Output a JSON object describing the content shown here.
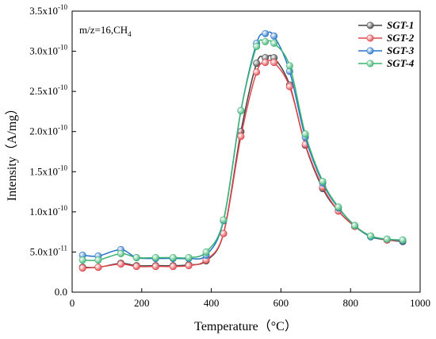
{
  "chart_data": {
    "type": "line",
    "title": "",
    "annotation": {
      "text": "m/z=16,CH",
      "sub": "4"
    },
    "xlabel": "Temperature（°C）",
    "ylabel": "Intensity（A/mg）",
    "xlim": [
      0,
      1000
    ],
    "ylim": [
      0,
      3.5e-10
    ],
    "x_ticks": [
      0,
      200,
      400,
      600,
      800,
      1000
    ],
    "y_ticks": [
      {
        "value": 0,
        "label": "0.0"
      },
      {
        "value": 5e-11,
        "label": "5.0x10",
        "exp": "-11"
      },
      {
        "value": 1e-10,
        "label": "1.0x10",
        "exp": "-10"
      },
      {
        "value": 1.5e-10,
        "label": "1.5x10",
        "exp": "-10"
      },
      {
        "value": 2e-10,
        "label": "2.0x10",
        "exp": "-10"
      },
      {
        "value": 2.5e-10,
        "label": "2.5x10",
        "exp": "-10"
      },
      {
        "value": 3e-10,
        "label": "3.0x10",
        "exp": "-10"
      },
      {
        "value": 3.5e-10,
        "label": "3.5x10",
        "exp": "-10"
      }
    ],
    "legend_position": "top-right",
    "series": [
      {
        "name": "SGT-1",
        "color": "#444444",
        "x": [
          30,
          75,
          140,
          185,
          240,
          290,
          335,
          385,
          435,
          485,
          530,
          555,
          580,
          625,
          670,
          720,
          765,
          812,
          858,
          905,
          950
        ],
        "y": [
          3.1e-11,
          3.1e-11,
          3.6e-11,
          3.3e-11,
          3.3e-11,
          3.3e-11,
          3.4e-11,
          3.9e-11,
          7.3e-11,
          2e-10,
          2.85e-10,
          2.92e-10,
          2.92e-10,
          2.58e-10,
          1.83e-10,
          1.29e-10,
          1.01e-10,
          8.2e-11,
          6.9e-11,
          6.5e-11,
          6.3e-11
        ]
      },
      {
        "name": "SGT-2",
        "color": "#e0474c",
        "x": [
          30,
          75,
          140,
          185,
          240,
          290,
          335,
          385,
          435,
          485,
          530,
          555,
          580,
          625,
          670,
          720,
          765,
          812,
          858,
          905,
          950
        ],
        "y": [
          3e-11,
          3.1e-11,
          3.5e-11,
          3.2e-11,
          3.2e-11,
          3.2e-11,
          3.3e-11,
          4e-11,
          7.3e-11,
          1.94e-10,
          2.74e-10,
          2.86e-10,
          2.86e-10,
          2.56e-10,
          1.84e-10,
          1.31e-10,
          1.01e-10,
          8.2e-11,
          7e-11,
          6.5e-11,
          6.4e-11
        ]
      },
      {
        "name": "SGT-3",
        "color": "#2673c8",
        "x": [
          30,
          75,
          140,
          185,
          240,
          290,
          335,
          385,
          435,
          485,
          530,
          555,
          580,
          625,
          670,
          720,
          765,
          812,
          858,
          905,
          950
        ],
        "y": [
          4.6e-11,
          4.5e-11,
          5.3e-11,
          4.3e-11,
          4.2e-11,
          4.2e-11,
          4.2e-11,
          4.6e-11,
          8.9e-11,
          2.26e-10,
          3.1e-10,
          3.22e-10,
          3.19e-10,
          2.75e-10,
          1.93e-10,
          1.36e-10,
          1.05e-10,
          8.3e-11,
          6.9e-11,
          6.6e-11,
          6.4e-11
        ]
      },
      {
        "name": "SGT-4",
        "color": "#3cb371",
        "x": [
          30,
          75,
          140,
          185,
          240,
          290,
          335,
          385,
          435,
          485,
          530,
          555,
          580,
          625,
          670,
          720,
          765,
          812,
          858,
          905,
          950
        ],
        "y": [
          4e-11,
          4e-11,
          4.8e-11,
          4.3e-11,
          4.3e-11,
          4.3e-11,
          4.3e-11,
          5e-11,
          9e-11,
          2.26e-10,
          3.06e-10,
          3.12e-10,
          3.1e-10,
          2.82e-10,
          1.97e-10,
          1.38e-10,
          1.06e-10,
          8.3e-11,
          7e-11,
          6.6e-11,
          6.5e-11
        ]
      }
    ]
  }
}
